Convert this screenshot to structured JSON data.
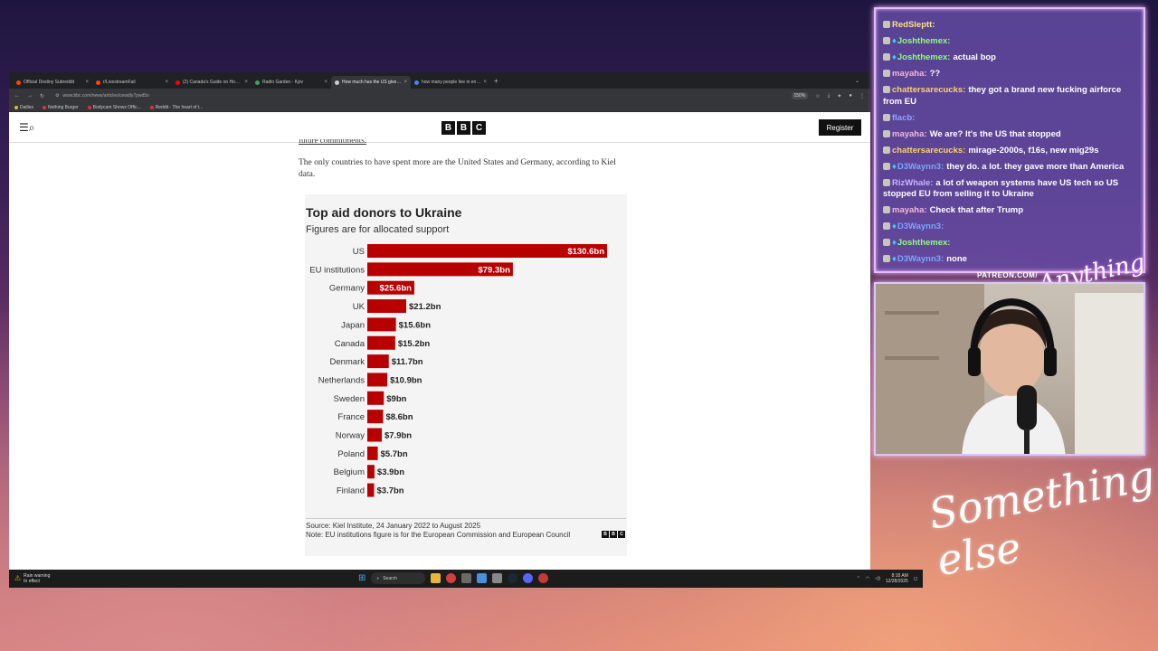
{
  "browser": {
    "tabs": [
      {
        "label": "Official Destiny Subreddit",
        "color": "#ff4500",
        "active": false
      },
      {
        "label": "r/LivestreamFail",
        "color": "#ff4500",
        "active": false
      },
      {
        "label": "(2) Canada's Guide on How No",
        "color": "#ff0000",
        "active": false
      },
      {
        "label": "Radio Garden - Kyiv",
        "color": "#34a853",
        "active": false
      },
      {
        "label": "How much has the US given to",
        "color": "#cccccc",
        "active": true
      },
      {
        "label": "how many people live in englan",
        "color": "#4285f4",
        "active": false
      }
    ],
    "url": "www.bbc.com/news/articles/cewdly7pwd5o",
    "zoom": "150%",
    "bookmarks": [
      "Dailies",
      "Nothing Burger",
      "Bodycam Shows Offic...",
      "Reddit - The heart of t..."
    ]
  },
  "bbc": {
    "register_label": "Register",
    "logo_letters": [
      "B",
      "B",
      "C"
    ],
    "cutoff_link": "future commitments.",
    "paragraph": "The only countries to have spent more are the United States and Germany, according to Kiel data."
  },
  "chart_data": {
    "type": "bar",
    "orientation": "horizontal",
    "title": "Top aid donors to Ukraine",
    "subtitle": "Figures are for allocated support",
    "categories": [
      "US",
      "EU institutions",
      "Germany",
      "UK",
      "Japan",
      "Canada",
      "Denmark",
      "Netherlands",
      "Sweden",
      "France",
      "Norway",
      "Poland",
      "Belgium",
      "Finland"
    ],
    "values": [
      130.6,
      79.3,
      25.6,
      21.2,
      15.6,
      15.2,
      11.7,
      10.9,
      9,
      8.6,
      7.9,
      5.7,
      3.9,
      3.7
    ],
    "value_labels": [
      "$130.6bn",
      "$79.3bn",
      "$25.6bn",
      "$21.2bn",
      "$15.6bn",
      "$15.2bn",
      "$11.7bn",
      "$10.9bn",
      "$9bn",
      "$8.6bn",
      "$7.9bn",
      "$5.7bn",
      "$3.9bn",
      "$3.7bn"
    ],
    "bar_color": "#b80000",
    "source": "Source: Kiel Institute, 24 January 2022 to August 2025",
    "note": "Note: EU institutions figure is for the European Commission and European Council"
  },
  "taskbar": {
    "weather_line1": "Rain warning",
    "weather_line2": "In effect",
    "search_label": "Search",
    "time": "8:18 AM",
    "date": "12/28/2025"
  },
  "chat": {
    "messages": [
      {
        "name": "RedSleptt:",
        "text": "",
        "name_color": "#ffe08a",
        "gem": false
      },
      {
        "name": "Joshthemex:",
        "text": "",
        "name_color": "#8dff7a",
        "gem": true
      },
      {
        "name": "Joshthemex:",
        "text": "actual bop",
        "name_color": "#8dff7a",
        "gem": true
      },
      {
        "name": "mayaha:",
        "text": "??",
        "name_color": "#f4b8d8",
        "gem": false
      },
      {
        "name": "chattersarecucks:",
        "text": "they got a brand new fucking airforce from EU",
        "name_color": "#ffd06b",
        "gem": false
      },
      {
        "name": "flacb:",
        "text": "",
        "name_color": "#8aa8ff",
        "gem": false
      },
      {
        "name": "mayaha:",
        "text": "We are? It's the US that stopped",
        "name_color": "#f4b8d8",
        "gem": false
      },
      {
        "name": "chattersarecucks:",
        "text": "mirage-2000s, f16s, new mig29s",
        "name_color": "#ffd06b",
        "gem": false
      },
      {
        "name": "D3Waynn3:",
        "text": "they do. a lot. they gave more than America",
        "name_color": "#7aa6ff",
        "gem": true
      },
      {
        "name": "RizWhale:",
        "text": "a lot of weapon systems have US tech so US stopped EU from selling it to Ukraine",
        "name_color": "#c9b3ff",
        "gem": false
      },
      {
        "name": "mayaha:",
        "text": "Check that after Trump",
        "name_color": "#f4b8d8",
        "gem": false
      },
      {
        "name": "D3Waynn3:",
        "text": "",
        "name_color": "#7aa6ff",
        "gem": true
      },
      {
        "name": "Joshthemex:",
        "text": "",
        "name_color": "#8dff7a",
        "gem": true
      },
      {
        "name": "D3Waynn3:",
        "text": "none",
        "name_color": "#7aa6ff",
        "gem": true
      }
    ]
  },
  "overlay": {
    "patreon": "PATREON.COM/",
    "script_top": "Anything else",
    "script_big": "Something else"
  }
}
